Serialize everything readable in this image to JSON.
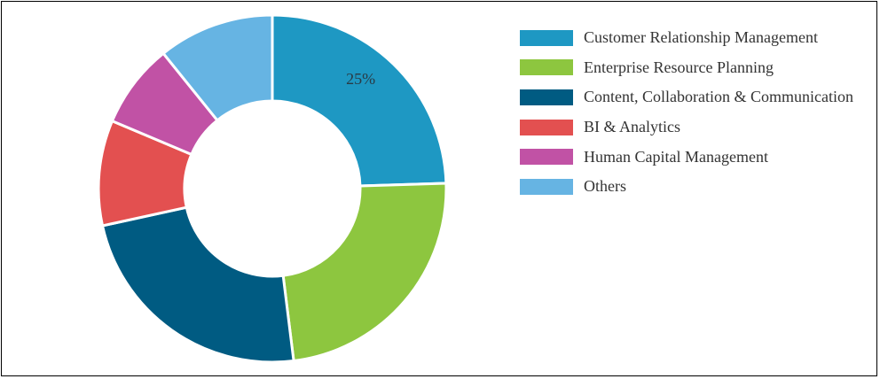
{
  "chart_data": {
    "type": "pie",
    "title": "",
    "categories": [
      "Customer Relationship Management",
      "Enterprise Resource Planning",
      "Content, Collaboration & Communication",
      "BI & Analytics",
      "Human Capital Management",
      "Others"
    ],
    "values": [
      25,
      24,
      24,
      10,
      8,
      11
    ],
    "colors": [
      "#1e98c3",
      "#8dc63f",
      "#005b82",
      "#e35050",
      "#c152a5",
      "#66b4e3"
    ],
    "data_labels": [
      "25%",
      "",
      "",
      "",
      "",
      ""
    ],
    "legend_position": "right",
    "donut": true
  }
}
